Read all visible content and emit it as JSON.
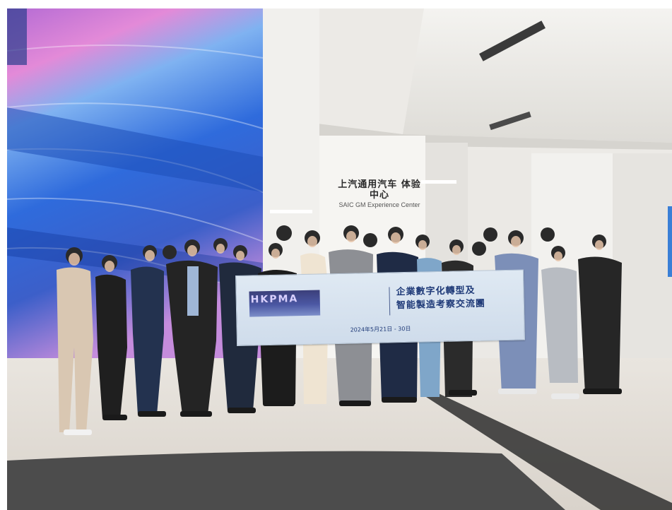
{
  "photo": {
    "description_tag": "group-photo",
    "wall_sign": {
      "chinese": "上汽通用汽车 体验中心",
      "english": "SAIC GM Experience Center"
    },
    "banner": {
      "logo_text": "HKPMA",
      "title_line1": "企業數字化轉型及",
      "title_line2": "智能製造考察交流團",
      "date": "2024年5月21日 - 30日"
    }
  },
  "colors": {
    "screen_blue": "#3d6fd8",
    "screen_pink": "#d46ad2",
    "floor": "#ebe8e3",
    "carpet": "#4a4a4a",
    "banner_text": "#1f3a78"
  }
}
